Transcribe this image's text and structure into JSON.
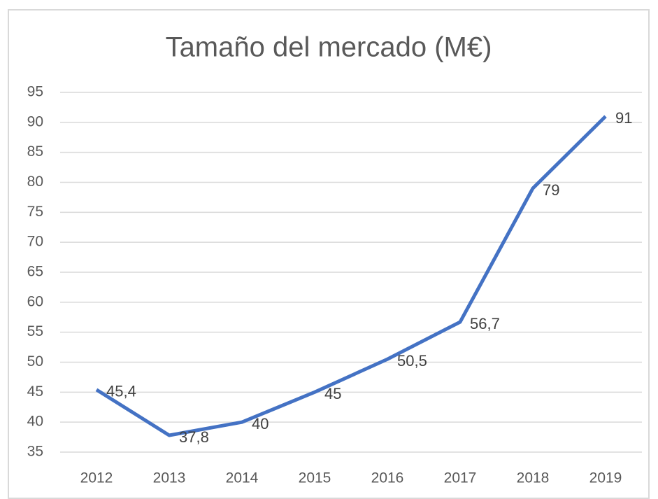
{
  "chart_data": {
    "type": "line",
    "title": "Tamaño del mercado (M€)",
    "categories": [
      "2012",
      "2013",
      "2014",
      "2015",
      "2016",
      "2017",
      "2018",
      "2019"
    ],
    "values": [
      45.4,
      37.8,
      40,
      45,
      50.5,
      56.7,
      79,
      91
    ],
    "value_labels": [
      "45,4",
      "37,8",
      "40",
      "45",
      "50,5",
      "56,7",
      "79",
      "91"
    ],
    "color": "#4472c4",
    "ylim": [
      35,
      95
    ],
    "yticks": [
      35,
      40,
      45,
      50,
      55,
      60,
      65,
      70,
      75,
      80,
      85,
      90,
      95
    ],
    "grid": true
  }
}
